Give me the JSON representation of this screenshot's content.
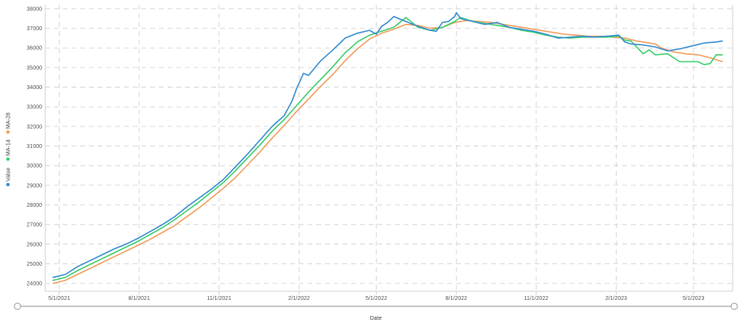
{
  "chart_data": {
    "type": "line",
    "title": "",
    "xlabel": "Date",
    "ylabel": "",
    "ylim": [
      23600,
      38200
    ],
    "xlim": [
      "2021-04-15",
      "2023-06-15"
    ],
    "grid": true,
    "legend_position": "left-vertical",
    "x_ticks": [
      "5/1/2021",
      "8/1/2021",
      "11/1/2021",
      "2/1/2022",
      "5/1/2022",
      "8/1/2022",
      "11/1/2022",
      "2/1/2023",
      "5/1/2023"
    ],
    "y_ticks": [
      24000,
      25000,
      26000,
      27000,
      28000,
      29000,
      30000,
      31000,
      32000,
      33000,
      34000,
      35000,
      36000,
      37000,
      38000
    ],
    "colors": {
      "Value": "#3a8fd1",
      "MA-14": "#3fcf6f",
      "MA-28": "#f0a060"
    },
    "series": [
      {
        "name": "Value",
        "x": [
          "2021-04-24",
          "2021-05-08",
          "2021-05-22",
          "2021-06-05",
          "2021-06-19",
          "2021-07-03",
          "2021-07-17",
          "2021-07-31",
          "2021-08-14",
          "2021-08-28",
          "2021-09-11",
          "2021-09-25",
          "2021-10-09",
          "2021-10-23",
          "2021-11-06",
          "2021-11-20",
          "2021-12-04",
          "2021-12-18",
          "2022-01-01",
          "2022-01-15",
          "2022-01-24",
          "2022-01-29",
          "2022-02-06",
          "2022-02-12",
          "2022-02-26",
          "2022-03-12",
          "2022-03-26",
          "2022-04-09",
          "2022-04-23",
          "2022-05-01",
          "2022-05-07",
          "2022-05-14",
          "2022-05-21",
          "2022-06-04",
          "2022-06-18",
          "2022-07-02",
          "2022-07-09",
          "2022-07-16",
          "2022-07-23",
          "2022-07-30",
          "2022-08-01",
          "2022-08-06",
          "2022-08-20",
          "2022-09-03",
          "2022-09-17",
          "2022-10-01",
          "2022-10-15",
          "2022-10-29",
          "2022-11-12",
          "2022-11-26",
          "2022-12-10",
          "2022-12-24",
          "2023-01-07",
          "2023-01-21",
          "2023-02-04",
          "2023-02-11",
          "2023-02-18",
          "2023-03-04",
          "2023-03-18",
          "2023-04-01",
          "2023-04-15",
          "2023-04-29",
          "2023-05-13",
          "2023-05-27",
          "2023-06-03"
        ],
        "y": [
          24300,
          24450,
          24850,
          25150,
          25450,
          25750,
          26000,
          26300,
          26650,
          27000,
          27400,
          27900,
          28350,
          28800,
          29300,
          29950,
          30600,
          31300,
          32000,
          32550,
          33300,
          33900,
          34700,
          34600,
          35350,
          35900,
          36500,
          36750,
          36900,
          36700,
          37100,
          37300,
          37600,
          37350,
          37100,
          36900,
          36850,
          37300,
          37350,
          37600,
          37800,
          37500,
          37350,
          37200,
          37300,
          37050,
          36950,
          36850,
          36700,
          36500,
          36550,
          36600,
          36550,
          36600,
          36650,
          36300,
          36200,
          36150,
          36050,
          35850,
          35950,
          36100,
          36250,
          36300,
          36350
        ]
      },
      {
        "name": "MA-14",
        "x": [
          "2021-04-24",
          "2021-05-08",
          "2021-05-22",
          "2021-06-05",
          "2021-06-19",
          "2021-07-03",
          "2021-07-17",
          "2021-07-31",
          "2021-08-14",
          "2021-08-28",
          "2021-09-11",
          "2021-09-25",
          "2021-10-09",
          "2021-10-23",
          "2021-11-06",
          "2021-11-20",
          "2021-12-04",
          "2021-12-18",
          "2022-01-01",
          "2022-01-15",
          "2022-01-29",
          "2022-02-12",
          "2022-02-26",
          "2022-03-12",
          "2022-03-26",
          "2022-04-09",
          "2022-04-23",
          "2022-05-07",
          "2022-05-21",
          "2022-06-04",
          "2022-06-18",
          "2022-07-02",
          "2022-07-16",
          "2022-07-30",
          "2022-08-06",
          "2022-08-20",
          "2022-09-03",
          "2022-09-17",
          "2022-10-01",
          "2022-10-15",
          "2022-10-29",
          "2022-11-12",
          "2022-11-26",
          "2022-12-10",
          "2022-12-24",
          "2023-01-07",
          "2023-01-21",
          "2023-02-04",
          "2023-02-11",
          "2023-02-18",
          "2023-03-04",
          "2023-03-11",
          "2023-03-18",
          "2023-04-01",
          "2023-04-15",
          "2023-04-29",
          "2023-05-06",
          "2023-05-13",
          "2023-05-20",
          "2023-05-27",
          "2023-06-03"
        ],
        "y": [
          24150,
          24300,
          24650,
          24950,
          25250,
          25550,
          25850,
          26150,
          26500,
          26850,
          27250,
          27700,
          28150,
          28650,
          29150,
          29750,
          30400,
          31050,
          31750,
          32350,
          33050,
          33750,
          34400,
          35050,
          35750,
          36300,
          36650,
          36850,
          37050,
          37550,
          37050,
          36900,
          37050,
          37350,
          37550,
          37350,
          37250,
          37150,
          37050,
          36900,
          36800,
          36650,
          36550,
          36500,
          36550,
          36550,
          36550,
          36600,
          36400,
          36350,
          35700,
          35900,
          35650,
          35700,
          35300,
          35300,
          35300,
          35150,
          35200,
          35650,
          35650
        ]
      },
      {
        "name": "MA-28",
        "x": [
          "2021-04-24",
          "2021-05-08",
          "2021-05-22",
          "2021-06-05",
          "2021-06-19",
          "2021-07-03",
          "2021-07-17",
          "2021-07-31",
          "2021-08-14",
          "2021-08-28",
          "2021-09-11",
          "2021-09-25",
          "2021-10-09",
          "2021-10-23",
          "2021-11-06",
          "2021-11-20",
          "2021-12-04",
          "2021-12-18",
          "2022-01-01",
          "2022-01-15",
          "2022-01-29",
          "2022-02-12",
          "2022-02-26",
          "2022-03-12",
          "2022-03-26",
          "2022-04-09",
          "2022-04-23",
          "2022-05-07",
          "2022-05-21",
          "2022-06-04",
          "2022-06-18",
          "2022-07-02",
          "2022-07-16",
          "2022-07-30",
          "2022-08-13",
          "2022-08-27",
          "2022-09-10",
          "2022-09-24",
          "2022-10-08",
          "2022-10-22",
          "2022-11-05",
          "2022-11-19",
          "2022-12-03",
          "2022-12-17",
          "2022-12-31",
          "2023-01-14",
          "2023-01-28",
          "2023-02-11",
          "2023-02-25",
          "2023-03-11",
          "2023-03-18",
          "2023-03-25",
          "2023-04-08",
          "2023-04-22",
          "2023-05-06",
          "2023-05-20",
          "2023-06-03"
        ],
        "y": [
          24000,
          24150,
          24450,
          24750,
          25050,
          25350,
          25650,
          25950,
          26250,
          26600,
          26950,
          27400,
          27850,
          28350,
          28850,
          29400,
          30050,
          30700,
          31400,
          32050,
          32750,
          33400,
          34050,
          34650,
          35350,
          35950,
          36450,
          36750,
          36950,
          37200,
          37150,
          37000,
          37050,
          37300,
          37400,
          37350,
          37300,
          37200,
          37100,
          37000,
          36900,
          36800,
          36700,
          36650,
          36600,
          36600,
          36550,
          36500,
          36350,
          36250,
          36200,
          36000,
          35800,
          35700,
          35650,
          35500,
          35300
        ]
      }
    ]
  }
}
